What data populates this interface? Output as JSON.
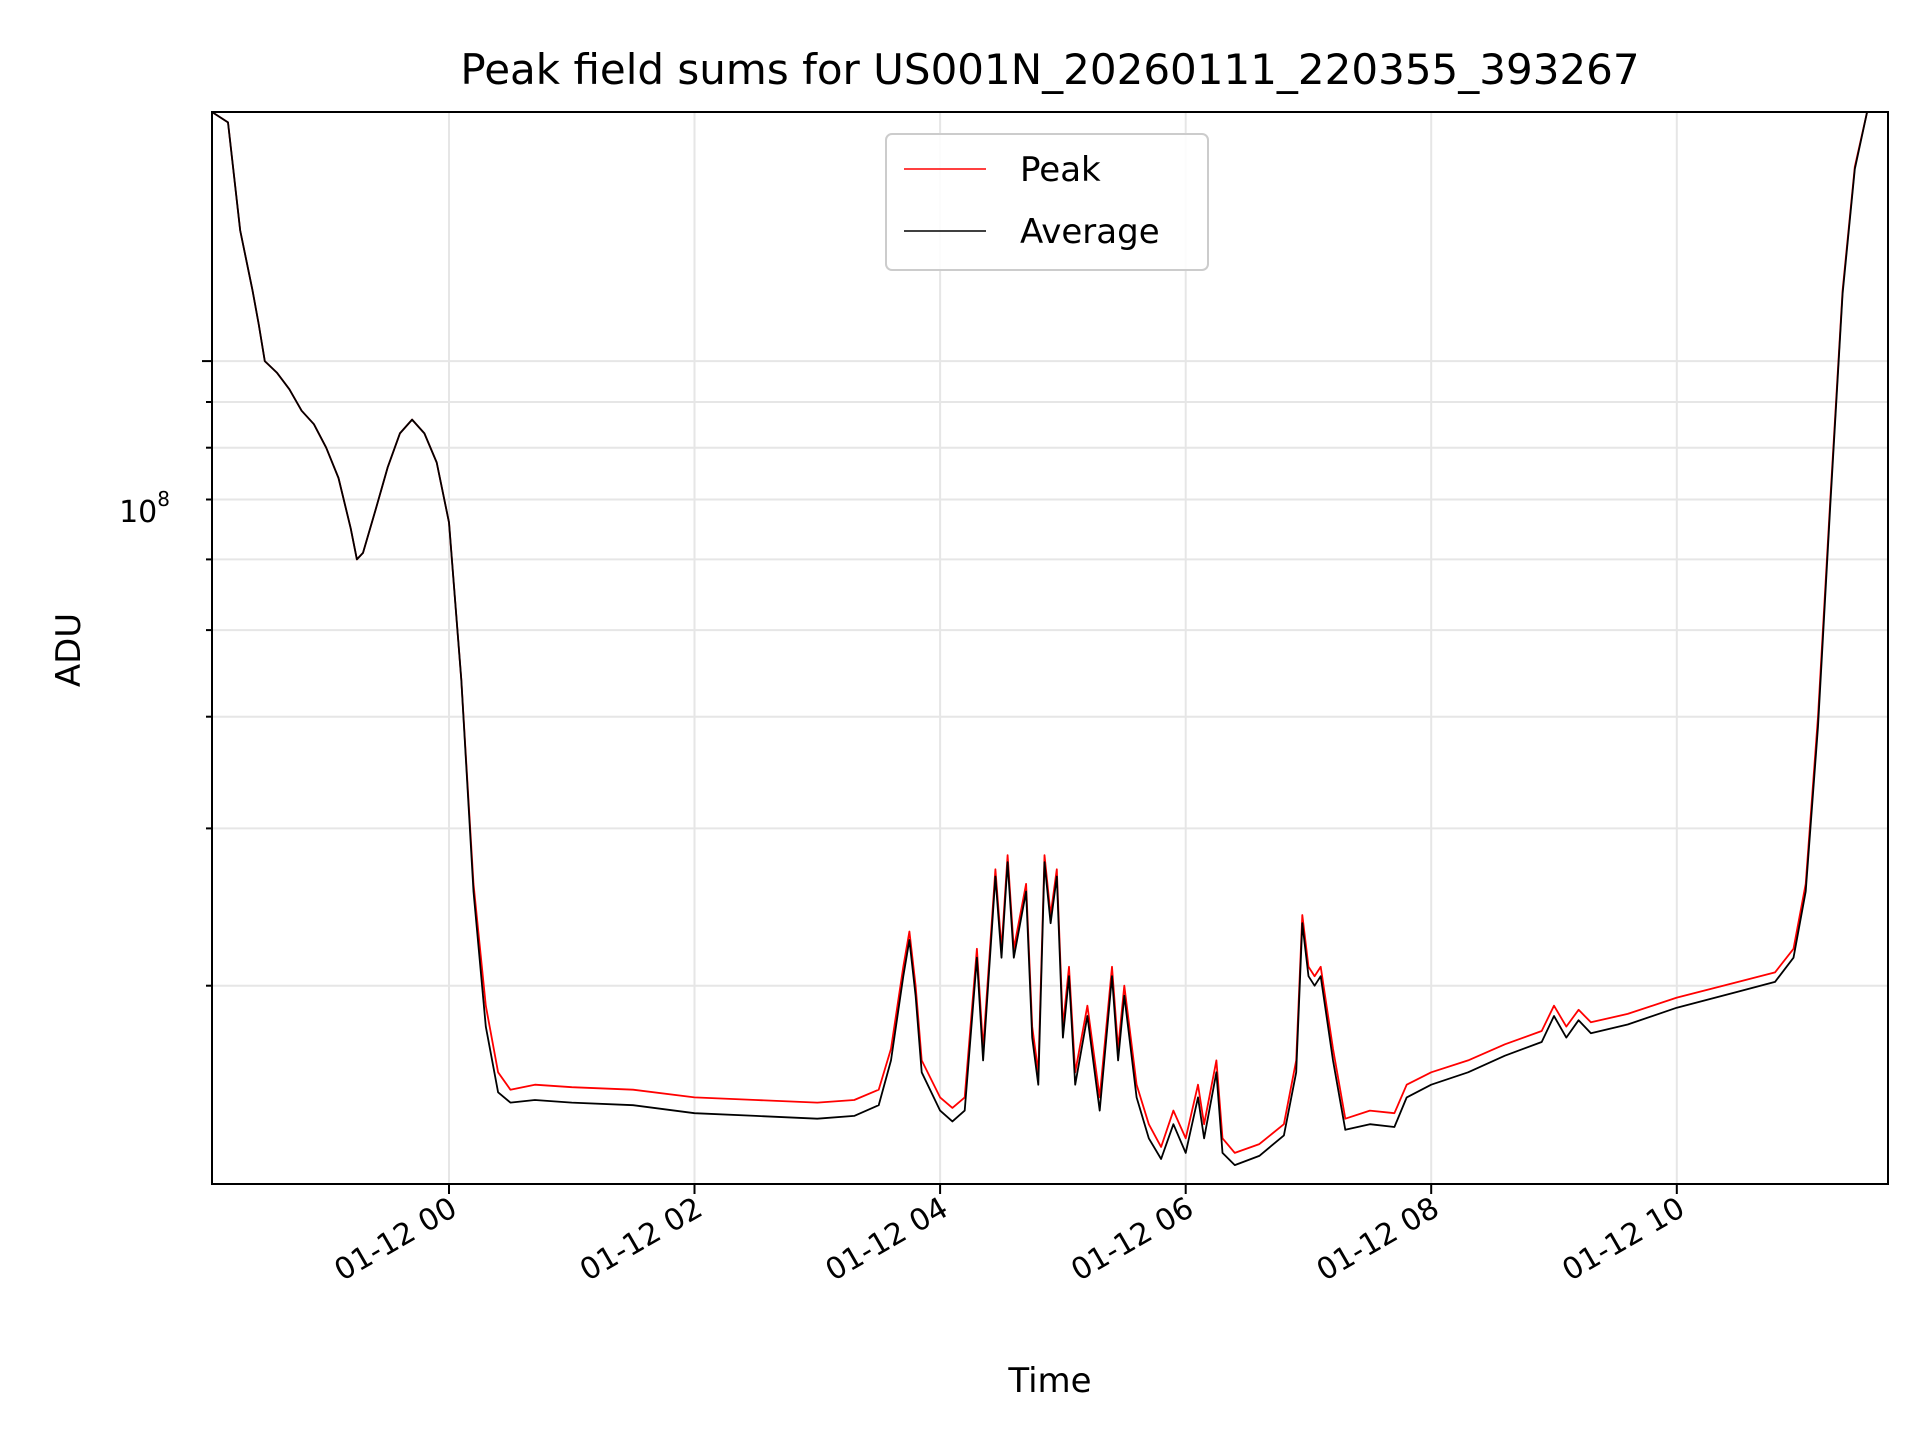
{
  "chart_data": {
    "type": "line",
    "title": "Peak field sums for US001N_20260111_220355_393267",
    "xlabel": "Time",
    "ylabel": "ADU",
    "yscale": "log",
    "ylim": [
      12000000,
      190000000
    ],
    "xlim_hours": [
      -1.93,
      11.72
    ],
    "grid": true,
    "legend_position": "upper-center",
    "x_tick_labels": [
      "01-12 00",
      "01-12 02",
      "01-12 04",
      "01-12 06",
      "01-12 08",
      "01-12 10"
    ],
    "x_tick_hours": [
      0,
      2,
      4,
      6,
      8,
      10
    ],
    "y_major_label": "10",
    "y_major_exponent": "8",
    "y_major_value": 100000000,
    "y_minor_values": [
      20000000,
      30000000,
      40000000,
      50000000,
      60000000,
      70000000,
      80000000,
      90000000,
      200000000
    ],
    "series": [
      {
        "name": "Peak",
        "color": "#ff0000",
        "points": [
          [
            -1.93,
            190000000
          ],
          [
            -1.8,
            185000000
          ],
          [
            -1.7,
            140000000
          ],
          [
            -1.6,
            120000000
          ],
          [
            -1.55,
            110000000
          ],
          [
            -1.5,
            100000000
          ],
          [
            -1.4,
            97000000
          ],
          [
            -1.3,
            93000000
          ],
          [
            -1.2,
            88000000
          ],
          [
            -1.1,
            85000000
          ],
          [
            -1.0,
            80000000
          ],
          [
            -0.9,
            74000000
          ],
          [
            -0.8,
            65000000
          ],
          [
            -0.75,
            60000000
          ],
          [
            -0.7,
            61000000
          ],
          [
            -0.6,
            68000000
          ],
          [
            -0.5,
            76000000
          ],
          [
            -0.4,
            83000000
          ],
          [
            -0.3,
            86000000
          ],
          [
            -0.2,
            83000000
          ],
          [
            -0.1,
            77000000
          ],
          [
            0.0,
            66000000
          ],
          [
            0.1,
            44000000
          ],
          [
            0.2,
            26000000
          ],
          [
            0.3,
            19000000
          ],
          [
            0.4,
            16000000
          ],
          [
            0.5,
            15300000
          ],
          [
            0.7,
            15500000
          ],
          [
            1.0,
            15400000
          ],
          [
            1.5,
            15300000
          ],
          [
            2.0,
            15000000
          ],
          [
            2.5,
            14900000
          ],
          [
            3.0,
            14800000
          ],
          [
            3.3,
            14900000
          ],
          [
            3.5,
            15300000
          ],
          [
            3.6,
            17000000
          ],
          [
            3.7,
            21000000
          ],
          [
            3.75,
            23000000
          ],
          [
            3.8,
            20000000
          ],
          [
            3.85,
            16500000
          ],
          [
            4.0,
            15000000
          ],
          [
            4.1,
            14600000
          ],
          [
            4.2,
            15000000
          ],
          [
            4.3,
            22000000
          ],
          [
            4.35,
            17000000
          ],
          [
            4.45,
            27000000
          ],
          [
            4.5,
            22000000
          ],
          [
            4.55,
            28000000
          ],
          [
            4.6,
            22000000
          ],
          [
            4.7,
            26000000
          ],
          [
            4.75,
            18000000
          ],
          [
            4.8,
            16000000
          ],
          [
            4.85,
            28000000
          ],
          [
            4.9,
            24000000
          ],
          [
            4.95,
            27000000
          ],
          [
            5.0,
            18000000
          ],
          [
            5.05,
            21000000
          ],
          [
            5.1,
            16000000
          ],
          [
            5.2,
            19000000
          ],
          [
            5.3,
            15000000
          ],
          [
            5.4,
            21000000
          ],
          [
            5.45,
            17000000
          ],
          [
            5.5,
            20000000
          ],
          [
            5.6,
            15500000
          ],
          [
            5.7,
            14000000
          ],
          [
            5.8,
            13200000
          ],
          [
            5.9,
            14500000
          ],
          [
            6.0,
            13500000
          ],
          [
            6.1,
            15500000
          ],
          [
            6.15,
            14000000
          ],
          [
            6.25,
            16500000
          ],
          [
            6.3,
            13500000
          ],
          [
            6.4,
            13000000
          ],
          [
            6.6,
            13300000
          ],
          [
            6.8,
            14000000
          ],
          [
            6.9,
            16500000
          ],
          [
            6.95,
            24000000
          ],
          [
            7.0,
            21000000
          ],
          [
            7.05,
            20500000
          ],
          [
            7.1,
            21000000
          ],
          [
            7.2,
            17000000
          ],
          [
            7.3,
            14200000
          ],
          [
            7.5,
            14500000
          ],
          [
            7.7,
            14400000
          ],
          [
            7.8,
            15500000
          ],
          [
            8.0,
            16000000
          ],
          [
            8.3,
            16500000
          ],
          [
            8.6,
            17200000
          ],
          [
            8.9,
            17800000
          ],
          [
            9.0,
            19000000
          ],
          [
            9.1,
            18000000
          ],
          [
            9.2,
            18800000
          ],
          [
            9.3,
            18200000
          ],
          [
            9.6,
            18600000
          ],
          [
            10.0,
            19400000
          ],
          [
            10.5,
            20200000
          ],
          [
            10.8,
            20700000
          ],
          [
            10.95,
            22000000
          ],
          [
            11.05,
            26000000
          ],
          [
            11.15,
            40000000
          ],
          [
            11.25,
            70000000
          ],
          [
            11.35,
            120000000
          ],
          [
            11.45,
            165000000
          ],
          [
            11.55,
            190000000
          ],
          [
            11.72,
            190000000
          ]
        ]
      },
      {
        "name": "Average",
        "color": "#000000",
        "points": [
          [
            -1.93,
            190000000
          ],
          [
            -1.8,
            185000000
          ],
          [
            -1.7,
            140000000
          ],
          [
            -1.6,
            120000000
          ],
          [
            -1.55,
            110000000
          ],
          [
            -1.5,
            100000000
          ],
          [
            -1.4,
            97000000
          ],
          [
            -1.3,
            93000000
          ],
          [
            -1.2,
            88000000
          ],
          [
            -1.1,
            85000000
          ],
          [
            -1.0,
            80000000
          ],
          [
            -0.9,
            74000000
          ],
          [
            -0.8,
            65000000
          ],
          [
            -0.75,
            60000000
          ],
          [
            -0.7,
            61000000
          ],
          [
            -0.6,
            68000000
          ],
          [
            -0.5,
            76000000
          ],
          [
            -0.4,
            83000000
          ],
          [
            -0.3,
            86000000
          ],
          [
            -0.2,
            83000000
          ],
          [
            -0.1,
            77000000
          ],
          [
            0.0,
            66000000
          ],
          [
            0.1,
            44000000
          ],
          [
            0.2,
            25500000
          ],
          [
            0.3,
            18000000
          ],
          [
            0.4,
            15200000
          ],
          [
            0.5,
            14800000
          ],
          [
            0.7,
            14900000
          ],
          [
            1.0,
            14800000
          ],
          [
            1.5,
            14700000
          ],
          [
            2.0,
            14400000
          ],
          [
            2.5,
            14300000
          ],
          [
            3.0,
            14200000
          ],
          [
            3.3,
            14300000
          ],
          [
            3.5,
            14700000
          ],
          [
            3.6,
            16500000
          ],
          [
            3.7,
            20500000
          ],
          [
            3.75,
            22500000
          ],
          [
            3.8,
            19500000
          ],
          [
            3.85,
            16000000
          ],
          [
            4.0,
            14500000
          ],
          [
            4.1,
            14100000
          ],
          [
            4.2,
            14500000
          ],
          [
            4.3,
            21500000
          ],
          [
            4.35,
            16500000
          ],
          [
            4.45,
            26500000
          ],
          [
            4.5,
            21500000
          ],
          [
            4.55,
            27500000
          ],
          [
            4.6,
            21500000
          ],
          [
            4.7,
            25500000
          ],
          [
            4.75,
            17500000
          ],
          [
            4.8,
            15500000
          ],
          [
            4.85,
            27500000
          ],
          [
            4.9,
            23500000
          ],
          [
            4.95,
            26500000
          ],
          [
            5.0,
            17500000
          ],
          [
            5.05,
            20500000
          ],
          [
            5.1,
            15500000
          ],
          [
            5.2,
            18500000
          ],
          [
            5.3,
            14500000
          ],
          [
            5.4,
            20500000
          ],
          [
            5.45,
            16500000
          ],
          [
            5.5,
            19500000
          ],
          [
            5.6,
            15000000
          ],
          [
            5.7,
            13500000
          ],
          [
            5.8,
            12800000
          ],
          [
            5.9,
            14000000
          ],
          [
            6.0,
            13000000
          ],
          [
            6.1,
            15000000
          ],
          [
            6.15,
            13500000
          ],
          [
            6.25,
            16000000
          ],
          [
            6.3,
            13000000
          ],
          [
            6.4,
            12600000
          ],
          [
            6.6,
            12900000
          ],
          [
            6.8,
            13600000
          ],
          [
            6.9,
            16000000
          ],
          [
            6.95,
            23500000
          ],
          [
            7.0,
            20500000
          ],
          [
            7.05,
            20000000
          ],
          [
            7.1,
            20500000
          ],
          [
            7.2,
            16500000
          ],
          [
            7.3,
            13800000
          ],
          [
            7.5,
            14000000
          ],
          [
            7.7,
            13900000
          ],
          [
            7.8,
            15000000
          ],
          [
            8.0,
            15500000
          ],
          [
            8.3,
            16000000
          ],
          [
            8.6,
            16700000
          ],
          [
            8.9,
            17300000
          ],
          [
            9.0,
            18500000
          ],
          [
            9.1,
            17500000
          ],
          [
            9.2,
            18300000
          ],
          [
            9.3,
            17700000
          ],
          [
            9.6,
            18100000
          ],
          [
            10.0,
            18900000
          ],
          [
            10.5,
            19700000
          ],
          [
            10.8,
            20200000
          ],
          [
            10.95,
            21500000
          ],
          [
            11.05,
            25500000
          ],
          [
            11.15,
            39000000
          ],
          [
            11.25,
            69000000
          ],
          [
            11.35,
            119000000
          ],
          [
            11.45,
            164000000
          ],
          [
            11.55,
            190000000
          ],
          [
            11.72,
            190000000
          ]
        ]
      }
    ]
  }
}
